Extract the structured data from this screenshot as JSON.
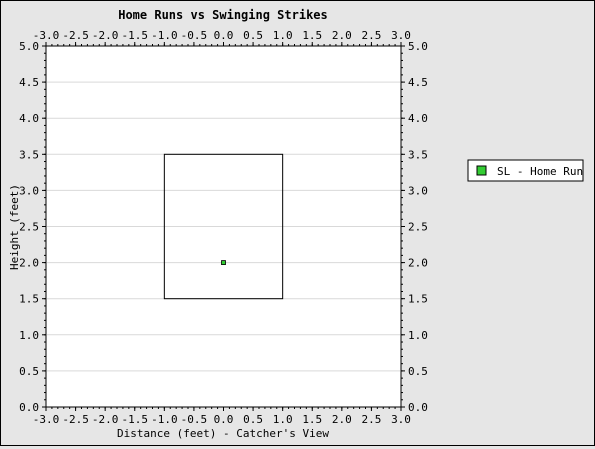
{
  "chart_data": {
    "type": "scatter",
    "title": "Home Runs vs Swinging Strikes",
    "xlabel": "Distance (feet) - Catcher's View",
    "ylabel": "Height (feet)",
    "xlim": [
      -3.0,
      3.0
    ],
    "ylim": [
      0.0,
      5.0
    ],
    "x_ticks": [
      "-3.0",
      "-2.5",
      "-2.0",
      "-1.5",
      "-1.0",
      "-0.5",
      "0.0",
      "0.5",
      "1.0",
      "1.5",
      "2.0",
      "2.5",
      "3.0"
    ],
    "y_ticks": [
      "0.0",
      "0.5",
      "1.0",
      "1.5",
      "2.0",
      "2.5",
      "3.0",
      "3.5",
      "4.0",
      "4.5",
      "5.0"
    ],
    "grid": true,
    "strike_zone": {
      "x": [
        -1.0,
        1.0
      ],
      "y": [
        1.5,
        3.5
      ]
    },
    "series": [
      {
        "name": "SL - Home Run",
        "color": "#33cc33",
        "points": [
          {
            "x": 0.0,
            "y": 2.0
          }
        ]
      }
    ],
    "legend_position": "right"
  }
}
